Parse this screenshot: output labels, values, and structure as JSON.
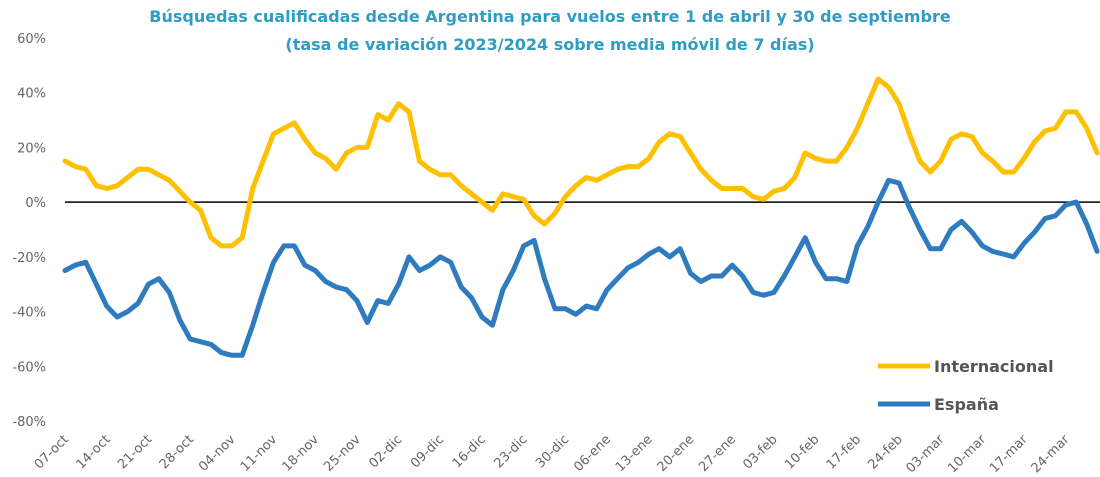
{
  "chart_data": {
    "type": "line",
    "title": "Búsquedas cualificadas desde Argentina para vuelos entre 1 de abril y 30 de septiembre",
    "subtitle": "(tasa de variación 2023/2024 sobre media móvil de 7 días)",
    "categories": [
      "07-oct",
      null,
      null,
      null,
      "14-oct",
      null,
      null,
      null,
      "21-oct",
      null,
      null,
      null,
      "28-oct",
      null,
      null,
      null,
      "04-nov",
      null,
      null,
      null,
      "11-nov",
      null,
      null,
      null,
      "18-nov",
      null,
      null,
      null,
      "25-nov",
      null,
      null,
      null,
      "02-dic",
      null,
      null,
      null,
      "09-dic",
      null,
      null,
      null,
      "16-dic",
      null,
      null,
      null,
      "23-dic",
      null,
      null,
      null,
      "30-dic",
      null,
      null,
      null,
      "06-ene",
      null,
      null,
      null,
      "13-ene",
      null,
      null,
      null,
      "20-ene",
      null,
      null,
      null,
      "27-ene",
      null,
      null,
      null,
      "03-feb",
      null,
      null,
      null,
      "10-feb",
      null,
      null,
      null,
      "17-feb",
      null,
      null,
      null,
      "24-feb",
      null,
      null,
      null,
      "03-mar",
      null,
      null,
      null,
      "10-mar",
      null,
      null,
      null,
      "17-mar",
      null,
      null,
      null,
      "24-mar",
      null,
      null,
      null
    ],
    "series": [
      {
        "name": "Internacional",
        "color": "#ffc000",
        "values": [
          15,
          13,
          12,
          6,
          5,
          6,
          9,
          12,
          12,
          10,
          8,
          4,
          0,
          -3,
          -13,
          -16,
          -16,
          -13,
          5,
          15,
          25,
          27,
          29,
          23,
          18,
          16,
          12,
          18,
          20,
          20,
          32,
          30,
          36,
          33,
          15,
          12,
          10,
          10,
          6,
          3,
          0,
          -3,
          3,
          2,
          1,
          -5,
          -8,
          -4,
          2,
          6,
          9,
          8,
          10,
          12,
          13,
          13,
          16,
          22,
          25,
          24,
          18,
          12,
          8,
          5,
          5,
          5,
          2,
          1,
          4,
          5,
          9,
          18,
          16,
          15,
          15,
          20,
          27,
          36,
          45,
          42,
          36,
          25,
          15,
          11,
          15,
          23,
          25,
          24,
          18,
          15,
          11,
          11,
          16,
          22,
          26,
          27,
          33,
          33,
          27,
          18
        ]
      },
      {
        "name": "España",
        "color": "#2e7bbf",
        "values": [
          -25,
          -23,
          -22,
          -30,
          -38,
          -42,
          -40,
          -37,
          -30,
          -28,
          -33,
          -43,
          -50,
          -51,
          -52,
          -55,
          -56,
          -56,
          -45,
          -33,
          -22,
          -16,
          -16,
          -23,
          -25,
          -29,
          -31,
          -32,
          -36,
          -44,
          -36,
          -37,
          -30,
          -20,
          -25,
          -23,
          -20,
          -22,
          -31,
          -35,
          -42,
          -45,
          -32,
          -25,
          -16,
          -14,
          -28,
          -39,
          -39,
          -41,
          -38,
          -39,
          -32,
          -28,
          -24,
          -22,
          -19,
          -17,
          -20,
          -17,
          -26,
          -29,
          -27,
          -27,
          -23,
          -27,
          -33,
          -34,
          -33,
          -27,
          -20,
          -13,
          -22,
          -28,
          -28,
          -29,
          -16,
          -9,
          0,
          8,
          7,
          -2,
          -10,
          -17,
          -17,
          -10,
          -7,
          -11,
          -16,
          -18,
          -19,
          -20,
          -15,
          -11,
          -6,
          -5,
          -1,
          0,
          -8,
          -18
        ]
      }
    ],
    "ylim": [
      -80,
      60
    ],
    "yticks": [
      {
        "value": -80,
        "label": "-80%"
      },
      {
        "value": -60,
        "label": "-60%"
      },
      {
        "value": -40,
        "label": "-40%"
      },
      {
        "value": -20,
        "label": "-20%"
      },
      {
        "value": 0,
        "label": "0%"
      },
      {
        "value": 20,
        "label": "20%"
      },
      {
        "value": 40,
        "label": "40%"
      },
      {
        "value": 60,
        "label": "60%"
      }
    ],
    "zero_line": true,
    "legend": "lower right"
  }
}
